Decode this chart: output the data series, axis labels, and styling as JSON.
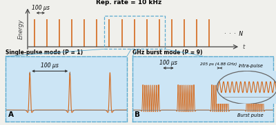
{
  "bg_color": "#f0f0ec",
  "pulse_color": "#d4681a",
  "box_bg": "#cce5f5",
  "box_edge": "#5aaad0",
  "title_top": "Rep. rate = 10 kHz",
  "label_100us_top": "100 μs",
  "label_N": "·  ·  ·  N",
  "xlabel_t": "t",
  "ylabel_energy": "Energy",
  "panel_A_title": "Single-pulse mode (P = 1)",
  "panel_B_title": "GHz burst mode (P = 9)",
  "label_A": "A",
  "label_B": "B",
  "label_100us_A": "100 μs",
  "label_100us_B": "100 μs",
  "label_205ps": "205 ps (4.88 GHz)",
  "label_intra": "Intra-pulse",
  "label_burst": "Burst pulse",
  "arrow_color": "#333333",
  "axis_color": "#444444"
}
